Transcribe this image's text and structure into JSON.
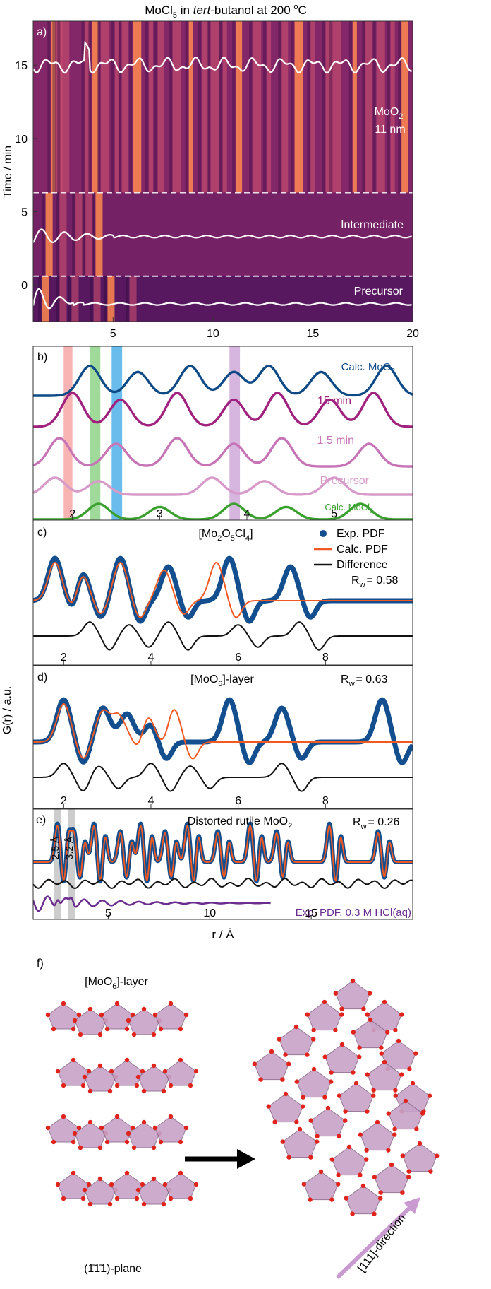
{
  "figure": {
    "title": "MoCl5 in tert-butanol at 200 °C",
    "title_parts": {
      "a": "MoCl",
      "sub": "5",
      "b": " in ",
      "ital": "tert",
      "c": "-butanol at 200 ",
      "sup": "o",
      "d": "C"
    },
    "x_axis_label": "r / Å",
    "y_axis_label_a": "Time / min",
    "y_axis_label_cde": "G(r) / a.u."
  },
  "colors": {
    "heat_low": "#3c0b52",
    "heat_mid": "#9a2c6e",
    "heat_high": "#ff8a4f",
    "overlay": "#ffffff",
    "navy": "#0d4a86",
    "magenta": "#a0217e",
    "pink": "#c774b7",
    "lilac": "#d79ac9",
    "green": "#3aa12e",
    "exp": "#134e8f",
    "calc": "#f05a22",
    "diff": "#111111",
    "purple": "#6a2d8f",
    "shade_red": "#f7a6a6",
    "shade_green": "#8fd38a",
    "shade_blue": "#4fb0e8",
    "shade_purple": "#cfa9d9",
    "shade_grey": "#c8c8c8",
    "polyhedron": "#c8a3c8",
    "oxygen": "#e0231b"
  },
  "chart_data": [
    {
      "panel": "a",
      "type": "heatmap",
      "label": "a)",
      "xlim": [
        1,
        20
      ],
      "ylim": [
        -2.5,
        18
      ],
      "x_ticks": [
        "5",
        "10",
        "15",
        "20"
      ],
      "y_ticks": [
        "0",
        "5",
        "10",
        "15"
      ],
      "ylabel": "Time / min",
      "stage_boundaries_min": [
        0.6,
        6.3
      ],
      "stages": [
        {
          "name": "Precursor",
          "profile_offset_min": -1.3
        },
        {
          "name": "Intermediate",
          "profile_offset_min": 3.3
        },
        {
          "name": "MoO2",
          "profile_offset_min": 15.0
        }
      ],
      "annotations": {
        "precursor": "Precursor",
        "intermediate": "Intermediate",
        "moo2_a": "MoO",
        "moo2_sub": "2",
        "moo2_size": "11 nm"
      }
    },
    {
      "panel": "b",
      "type": "line",
      "label": "b)",
      "xlim": [
        1.55,
        5.9
      ],
      "x_ticks": [
        "2",
        "3",
        "4",
        "5"
      ],
      "highlight_bands_r": [
        [
          1.9,
          2.0
        ],
        [
          2.2,
          2.32
        ],
        [
          2.45,
          2.57
        ],
        [
          3.8,
          3.92
        ]
      ],
      "series": [
        {
          "name": "Calc. MoO2",
          "label_a": "Calc. MoO",
          "label_sub": "2",
          "peaks_r": [
            2.2,
            2.75,
            3.35,
            3.85,
            4.25,
            4.85,
            5.6
          ]
        },
        {
          "name": "15 min",
          "label_a": "15 min",
          "label_sub": "",
          "peaks_r": [
            2.0,
            2.55,
            3.2,
            3.85,
            4.35,
            4.95,
            5.45
          ]
        },
        {
          "name": "1.5 min",
          "label_a": "1.5 min",
          "label_sub": "",
          "peaks_r": [
            1.85,
            2.5,
            3.2,
            3.85,
            4.4,
            5.4
          ]
        },
        {
          "name": "Precursor",
          "label_a": "Precursor",
          "label_sub": "",
          "peaks_r": [
            1.8,
            2.3,
            3.6,
            4.2,
            5.0
          ]
        },
        {
          "name": "Calc. MoCl5",
          "label_a": "Calc. MoCl",
          "label_sub": "5",
          "peaks_r": [
            2.3,
            3.0,
            3.85,
            4.45,
            5.3
          ]
        }
      ]
    },
    {
      "panel": "c",
      "type": "line",
      "label": "c)",
      "title_a": "[Mo",
      "title_s1": "2",
      "title_b": "O",
      "title_s2": "5",
      "title_c": "Cl",
      "title_s3": "4",
      "title_d": "]",
      "xlim": [
        1.3,
        10.0
      ],
      "x_ticks": [
        "2",
        "4",
        "6",
        "8"
      ],
      "rw_label": "R",
      "rw_sub": "w",
      "rw_value": "= 0.58",
      "legend": [
        "Exp. PDF",
        "Calc. PDF",
        "Difference"
      ],
      "series": [
        {
          "name": "Exp. PDF",
          "peaks_r": [
            1.8,
            2.4,
            3.3,
            4.4,
            5.8,
            7.2
          ]
        },
        {
          "name": "Calc. PDF",
          "peaks_r": [
            1.8,
            2.4,
            3.3,
            4.3,
            5.5
          ]
        },
        {
          "name": "Difference",
          "peaks_r": [
            2.6,
            3.5,
            4.4,
            6.0,
            7.4
          ]
        }
      ]
    },
    {
      "panel": "d",
      "type": "line",
      "label": "d)",
      "title_a": "[MoO",
      "title_s1": "6",
      "title_b": "]-layer",
      "xlim": [
        1.3,
        10.0
      ],
      "x_ticks": [
        "2",
        "4",
        "6",
        "8"
      ],
      "rw_label": "R",
      "rw_sub": "w",
      "rw_value": "= 0.63",
      "series": [
        {
          "name": "Exp. PDF",
          "peaks_r": [
            2.0,
            2.9,
            3.4,
            3.9,
            5.8,
            7.0,
            9.3
          ]
        },
        {
          "name": "Calc. PDF",
          "peaks_r": [
            2.0,
            2.9,
            3.3,
            3.9,
            4.5
          ]
        },
        {
          "name": "Difference",
          "peaks_r": [
            2.0,
            2.8,
            4.0,
            4.9,
            7.0
          ]
        }
      ]
    },
    {
      "panel": "e",
      "type": "line",
      "label": "e)",
      "title_a": "Distorted rutile MoO",
      "title_s1": "2",
      "xlim": [
        1.3,
        20.0
      ],
      "x_ticks": [
        "5",
        "10",
        "15"
      ],
      "rw_label": "R",
      "rw_sub": "w",
      "rw_value": "= 0.26",
      "distance_markers_r": [
        2.5,
        3.2
      ],
      "distance_labels": [
        "2.5 Å",
        "3.2 Å"
      ],
      "extra_label": "Exp. PDF, 0.3 M HCl(aq)",
      "series": [
        {
          "name": "Exp. PDF",
          "peaks_r": [
            2.5,
            3.3,
            4.3,
            5.6,
            6.6,
            7.8,
            8.9,
            10.4,
            12.0,
            13.3,
            15.9,
            18.3
          ]
        },
        {
          "name": "Calc. PDF"
        },
        {
          "name": "Difference"
        },
        {
          "name": "Exp. PDF, 0.3 M HCl(aq)"
        }
      ]
    }
  ],
  "panel_f": {
    "label": "f)",
    "title_a": "[MoO",
    "title_s1": "6",
    "title_b": "]-layer",
    "plane_label": "(1̄1̄1)-plane",
    "direction_label": "[111]-direction"
  }
}
